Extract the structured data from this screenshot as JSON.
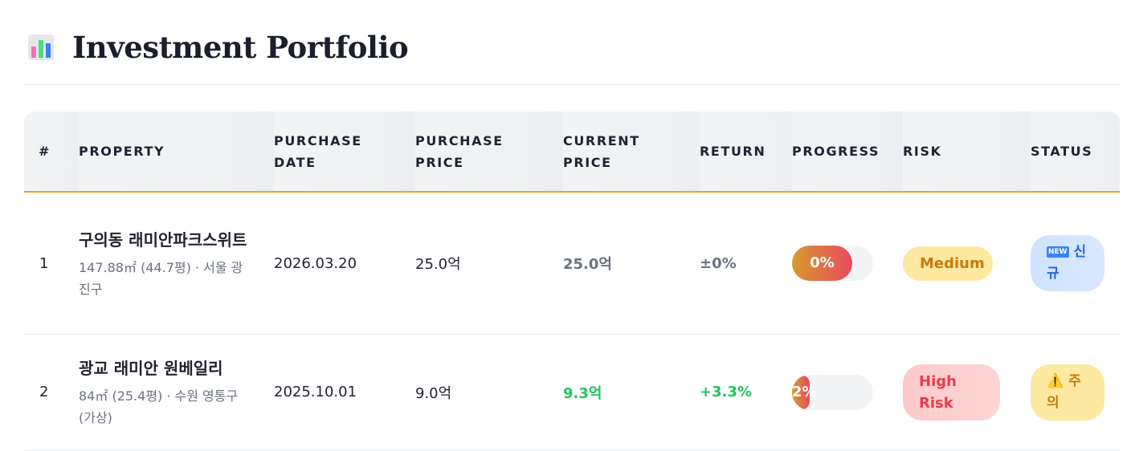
{
  "header": {
    "title": "Investment Portfolio",
    "icon": "bar-chart-icon"
  },
  "table": {
    "columns": [
      "#",
      "PROPERTY",
      "PURCHASE DATE",
      "PURCHASE PRICE",
      "CURRENT PRICE",
      "RETURN",
      "PROGRESS",
      "RISK",
      "STATUS"
    ],
    "rows": [
      {
        "index": "1",
        "name": "구의동 래미안파크스위트",
        "meta": "147.88㎡ (44.7평) · 서울 광진구",
        "purchase_date": "2026.03.20",
        "purchase_price": "25.0억",
        "current_price": "25.0억",
        "return": "±0%",
        "progress_label": "0%",
        "progress_value": 0,
        "risk": "Medium",
        "status": "신규",
        "status_icon": "new-icon"
      },
      {
        "index": "2",
        "name": "광교 래미안 원베일리",
        "meta": "84㎡ (25.4평) · 수원 영통구 (가상)",
        "purchase_date": "2025.10.01",
        "purchase_price": "9.0억",
        "current_price": "9.3억",
        "return": "+3.3%",
        "progress_label": "2%",
        "progress_value": 2,
        "risk": "High Risk",
        "status": "주의",
        "status_icon": "warning-icon"
      }
    ]
  },
  "colors": {
    "accent": "#e3a82b",
    "positive": "#22c55e",
    "neutral": "#6b7280",
    "risk_high": "#e53e4c",
    "risk_medium": "#c77b0a",
    "status_new": "#2563eb"
  }
}
